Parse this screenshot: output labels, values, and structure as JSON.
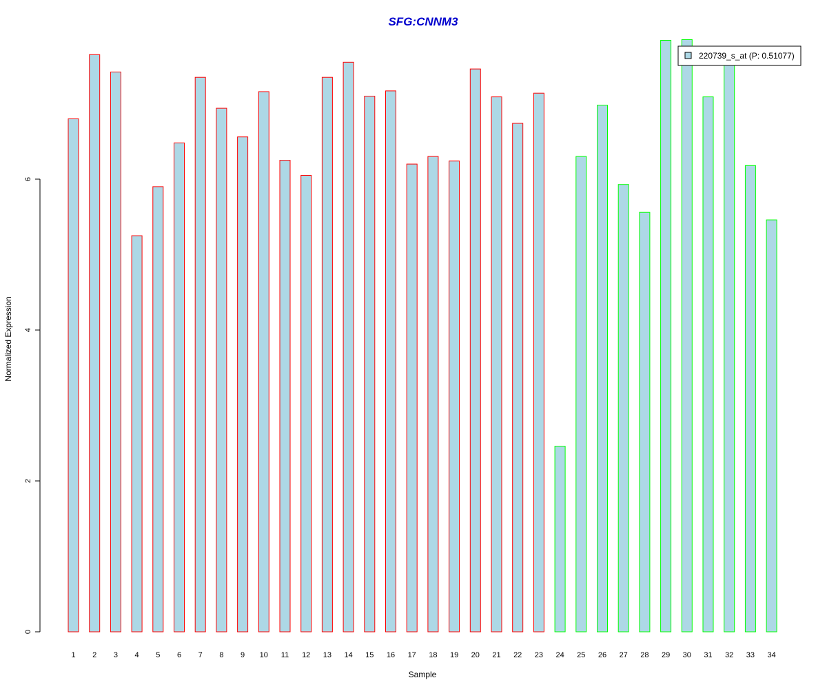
{
  "chart_data": {
    "type": "bar",
    "title": "SFG:CNNM3",
    "xlabel": "Sample",
    "ylabel": "Normalized Expression",
    "ylim": [
      0,
      7.85
    ],
    "yticks": [
      0,
      2,
      4,
      6
    ],
    "categories": [
      "1",
      "2",
      "3",
      "4",
      "5",
      "6",
      "7",
      "8",
      "9",
      "10",
      "11",
      "12",
      "13",
      "14",
      "15",
      "16",
      "17",
      "18",
      "19",
      "20",
      "21",
      "22",
      "23",
      "24",
      "25",
      "26",
      "27",
      "28",
      "29",
      "30",
      "31",
      "32",
      "33",
      "34"
    ],
    "values": [
      6.8,
      7.65,
      7.42,
      5.25,
      5.9,
      6.48,
      7.35,
      6.94,
      6.56,
      7.16,
      6.25,
      6.05,
      7.35,
      7.55,
      7.1,
      7.17,
      6.2,
      6.3,
      6.24,
      7.46,
      7.09,
      6.74,
      7.14,
      2.46,
      6.3,
      6.98,
      5.93,
      5.56,
      7.84,
      7.85,
      7.09,
      7.6,
      6.18,
      5.46
    ],
    "groups": [
      "red",
      "red",
      "red",
      "red",
      "red",
      "red",
      "red",
      "red",
      "red",
      "red",
      "red",
      "red",
      "red",
      "red",
      "red",
      "red",
      "red",
      "red",
      "red",
      "red",
      "red",
      "red",
      "red",
      "green",
      "green",
      "green",
      "green",
      "green",
      "green",
      "green",
      "green",
      "green",
      "green",
      "green"
    ],
    "colors": {
      "bar_fill": "#add8e6",
      "red_border": "#ff0000",
      "green_border": "#00ff00",
      "title": "#0000cd",
      "axis": "#000000"
    },
    "legend": {
      "position": "top-right",
      "entries": [
        {
          "label": "220739_s_at (P: 0.51077)",
          "color": "#add8e6"
        }
      ]
    },
    "grid": false
  }
}
